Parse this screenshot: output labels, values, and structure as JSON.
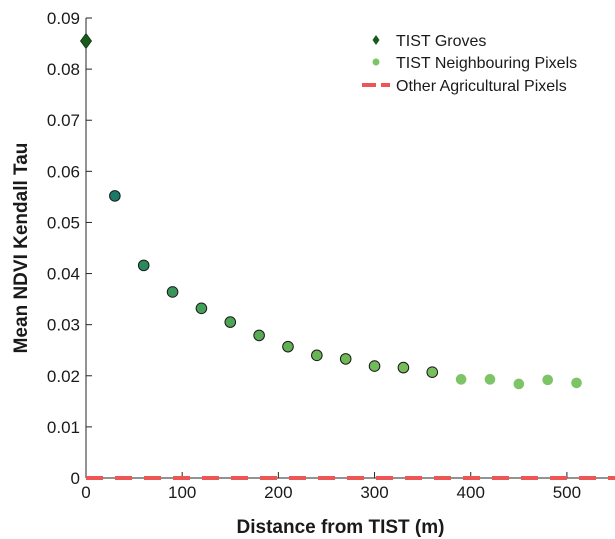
{
  "chart_data": {
    "type": "scatter",
    "title": "",
    "xlabel": "Distance from TIST (m)",
    "ylabel": "Mean NDVI Kendall Tau",
    "xlim": [
      0,
      550
    ],
    "ylim": [
      0,
      0.09
    ],
    "x_ticks": [
      0,
      100,
      200,
      300,
      400,
      500
    ],
    "y_ticks": [
      0,
      0.01,
      0.02,
      0.03,
      0.04,
      0.05,
      0.06,
      0.07,
      0.08,
      0.09
    ],
    "x_tick_labels": [
      "0",
      "100",
      "200",
      "300",
      "400",
      "500"
    ],
    "y_tick_labels": [
      "0",
      "0.01",
      "0.02",
      "0.03",
      "0.04",
      "0.05",
      "0.06",
      "0.07",
      "0.08",
      "0.09"
    ],
    "grid": false,
    "legend_position": "top-right",
    "series": [
      {
        "name": "TIST Groves",
        "marker": "diamond",
        "color": "#1a5a1a",
        "x": [
          0
        ],
        "y": [
          0.0855
        ]
      },
      {
        "name": "TIST Neighbouring Pixels",
        "marker": "circle",
        "color": "#7cc466",
        "x": [
          30,
          60,
          90,
          120,
          150,
          180,
          210,
          240,
          270,
          300,
          330,
          360,
          390,
          420,
          450,
          480,
          510
        ],
        "y": [
          0.0552,
          0.0416,
          0.0364,
          0.0332,
          0.0305,
          0.0279,
          0.0257,
          0.024,
          0.0233,
          0.0219,
          0.0216,
          0.0207,
          0.0193,
          0.0193,
          0.0184,
          0.0192,
          0.0186
        ],
        "point_colors": [
          "#1a7a6a",
          "#2a8a5c",
          "#3a955a",
          "#44a058",
          "#4ea455",
          "#58aa55",
          "#61b055",
          "#69b555",
          "#6fb955",
          "#73bb58",
          "#75bd5a",
          "#78bf5c",
          "#7cc466",
          "#7cc466",
          "#7cc466",
          "#7cc466",
          "#7cc466"
        ],
        "outlined": [
          true,
          true,
          true,
          true,
          true,
          true,
          true,
          true,
          true,
          true,
          true,
          true,
          false,
          false,
          false,
          false,
          false
        ]
      },
      {
        "name": "Other Agricultural Pixels",
        "marker": "dashed-line",
        "color": "#ee5555",
        "x": [
          0,
          550
        ],
        "y": [
          0,
          0
        ]
      }
    ]
  }
}
